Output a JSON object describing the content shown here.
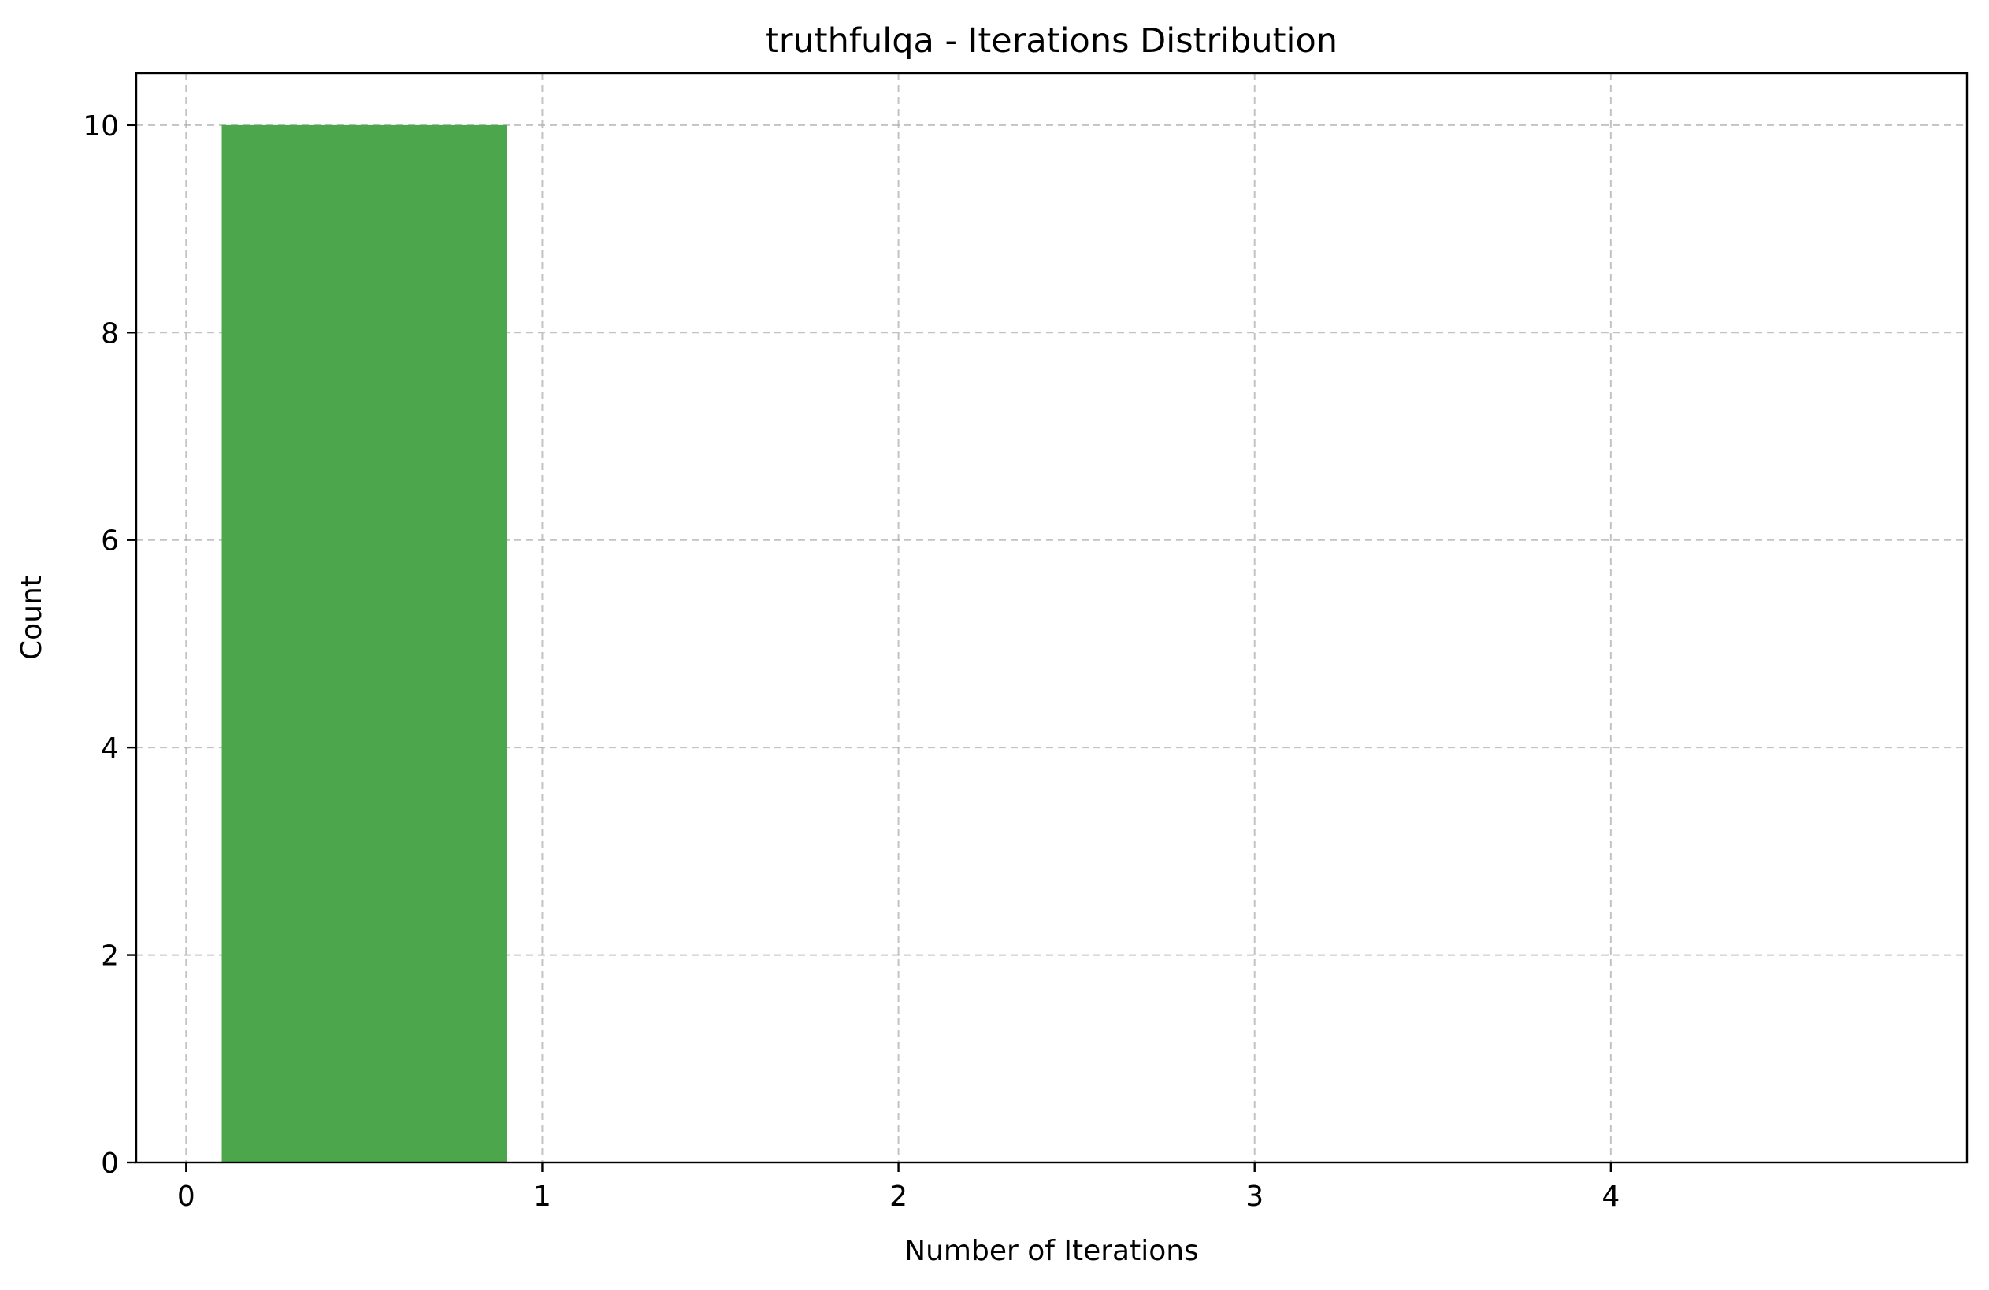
{
  "chart_data": {
    "type": "bar",
    "title": "truthfulqa - Iterations Distribution",
    "xlabel": "Number of Iterations",
    "ylabel": "Count",
    "bins": [
      {
        "x_start": 0.1,
        "x_end": 0.9,
        "value": 10
      }
    ],
    "xlim": [
      -0.14,
      5.0
    ],
    "ylim": [
      0,
      10.5
    ],
    "xticks": [
      0,
      1,
      2,
      3,
      4
    ],
    "yticks": [
      0,
      2,
      4,
      6,
      8,
      10
    ],
    "grid": true,
    "bar_color": "#4ca64c",
    "grid_color": "#b0b0b0"
  }
}
